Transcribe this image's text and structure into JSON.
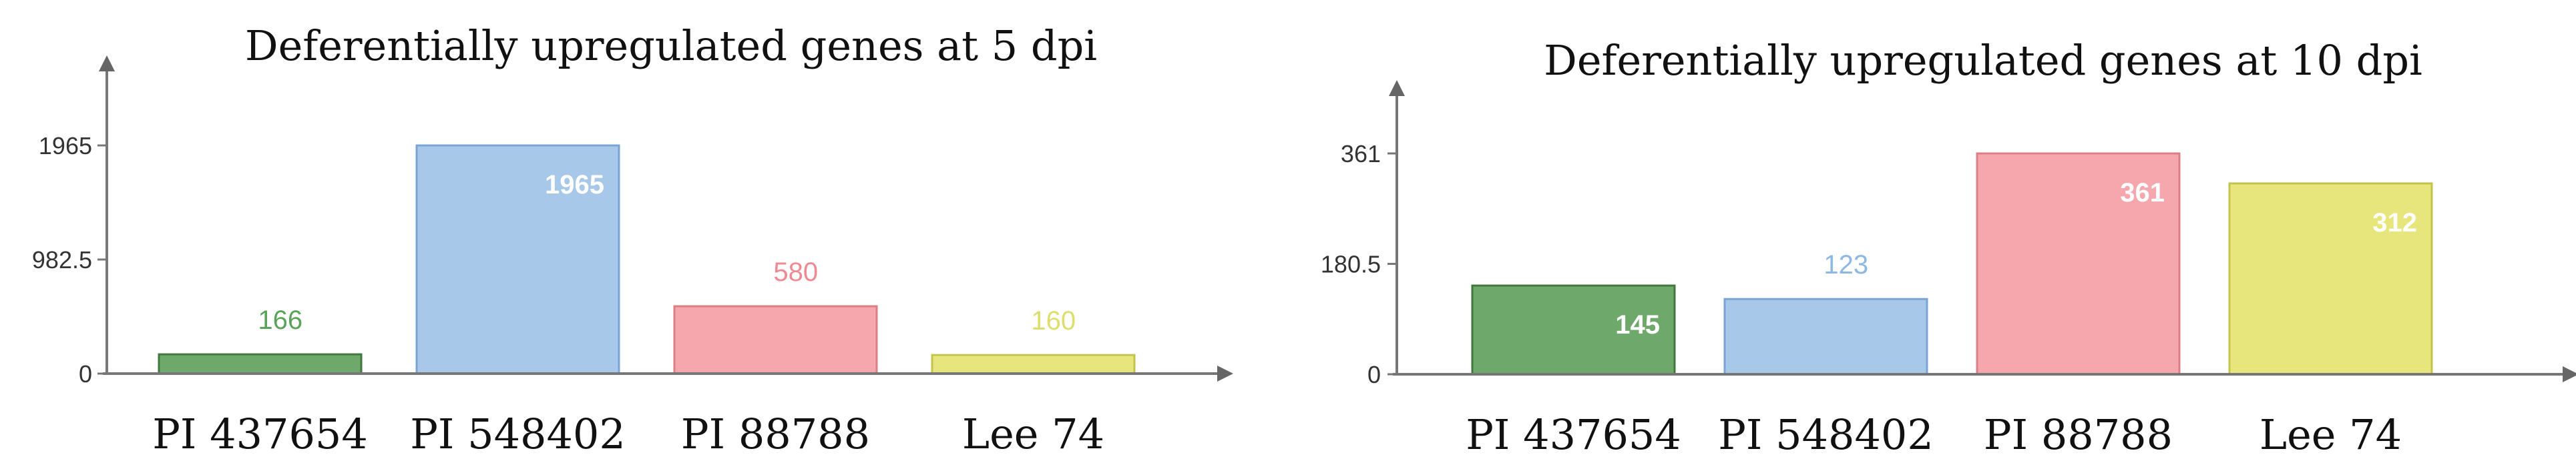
{
  "chart_data": [
    {
      "type": "bar",
      "title": "Deferentially upregulated genes at 5 dpi",
      "categories": [
        "PI 437654",
        "PI 548402",
        "PI 88788",
        "Lee 74"
      ],
      "values": [
        166,
        1965,
        580,
        160
      ],
      "data_labels": [
        "166",
        "1965",
        "580",
        "160"
      ],
      "ylim": [
        0,
        1965
      ],
      "yticks": [
        0,
        982.5,
        1965
      ],
      "ytick_labels": [
        "0",
        "982.5",
        "1965"
      ],
      "xlabel": "",
      "ylabel": "",
      "grid": false,
      "bar_fills": [
        "#6fa86b",
        "#a8c8ea",
        "#f5a7ad",
        "#e6e67c"
      ],
      "bar_strokes": [
        "#3f7a3c",
        "#7aa4d4",
        "#dc7e86",
        "#c4c44c"
      ],
      "label_colors": [
        "#5aa45a",
        "#ffffff",
        "#f08a92",
        "#dede6e"
      ]
    },
    {
      "type": "bar",
      "title": "Deferentially upregulated genes at 10 dpi",
      "categories": [
        "PI 437654",
        "PI 548402",
        "PI 88788",
        "Lee 74"
      ],
      "values": [
        145,
        123,
        361,
        312
      ],
      "data_labels": [
        "145",
        "123",
        "361",
        "312"
      ],
      "ylim": [
        0,
        361
      ],
      "yticks": [
        0,
        180.5,
        361
      ],
      "ytick_labels": [
        "0",
        "180.5",
        "361"
      ],
      "xlabel": "",
      "ylabel": "",
      "grid": false,
      "bar_fills": [
        "#6fa86b",
        "#a8c8ea",
        "#f5a7ad",
        "#e6e67c"
      ],
      "bar_strokes": [
        "#3f7a3c",
        "#7aa4d4",
        "#dc7e86",
        "#c4c44c"
      ],
      "label_colors": [
        "#ffffff",
        "#8cb8e4",
        "#ffffff",
        "#ffffff"
      ]
    }
  ]
}
